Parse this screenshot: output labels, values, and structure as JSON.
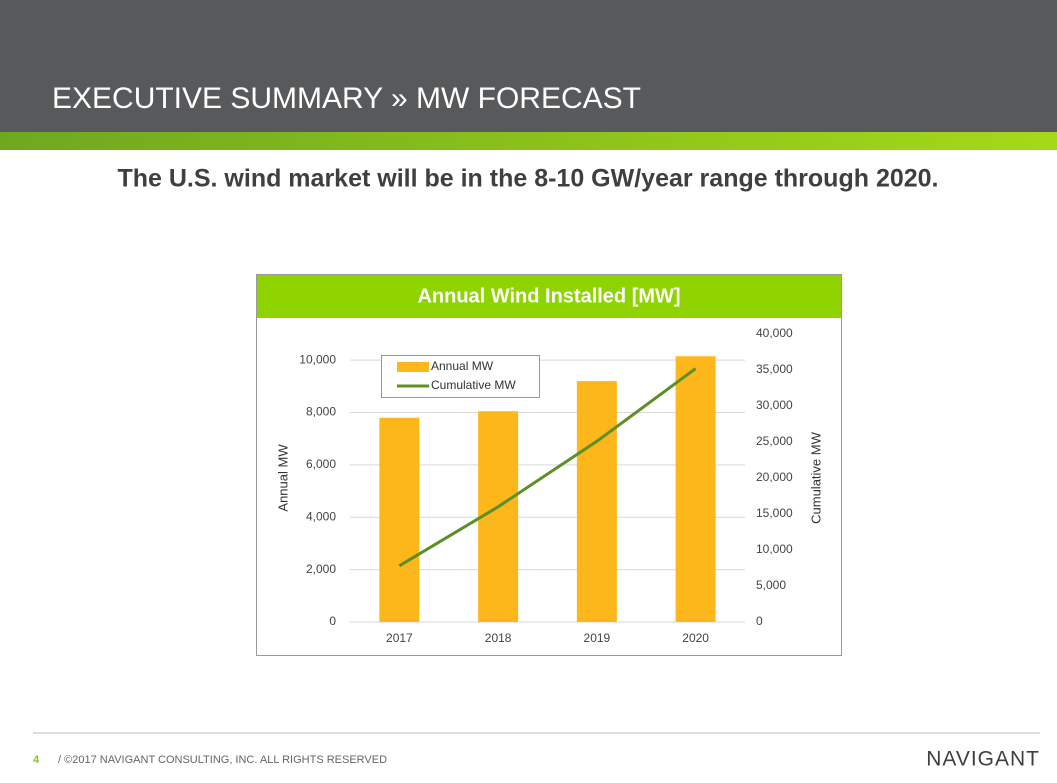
{
  "header": {
    "title": "EXECUTIVE SUMMARY » MW FORECAST"
  },
  "subtitle": "The U.S. wind market will be in the 8-10 GW/year range through 2020.",
  "chart_data": {
    "type": "bar",
    "title": "Annual Wind Installed [MW]",
    "categories": [
      "2017",
      "2018",
      "2019",
      "2020"
    ],
    "series": [
      {
        "name": "Annual MW",
        "color": "#fdb71a",
        "type": "bar",
        "values": [
          7800,
          8050,
          9200,
          10150
        ]
      },
      {
        "name": "Cumulative MW",
        "color": "#5d8f27",
        "type": "line",
        "axis": "y2",
        "values": [
          7800,
          16000,
          25100,
          35200
        ]
      }
    ],
    "y_label": "Annual MW",
    "y2_label": "Cumulative MW",
    "ylim": [
      0,
      11000
    ],
    "yticks": [
      0,
      {
        "value": 2000,
        "label": "2,000"
      },
      {
        "value": 4000,
        "label": "4,000"
      },
      {
        "value": 6000,
        "label": "6,000"
      },
      {
        "value": 8000,
        "label": "8,000"
      },
      {
        "value": 10000,
        "label": "10,000"
      }
    ],
    "y2lim": [
      0,
      40000
    ],
    "y2ticks": [
      0,
      {
        "value": 5000,
        "label": "5,000"
      },
      {
        "value": 10000,
        "label": "10,000"
      },
      {
        "value": 15000,
        "label": "15,000"
      },
      {
        "value": 20000,
        "label": "20,000"
      },
      {
        "value": 25000,
        "label": "25,000"
      },
      {
        "value": 30000,
        "label": "30,000"
      },
      {
        "value": 35000,
        "label": "35,000"
      },
      {
        "value": 40000,
        "label": "40,000"
      }
    ],
    "grid": true,
    "legend": "upper left"
  },
  "footer": {
    "page": "4",
    "text": "/ ©2017 NAVIGANT CONSULTING, INC. ALL RIGHTS RESERVED",
    "logo": "NAVIGANT"
  }
}
